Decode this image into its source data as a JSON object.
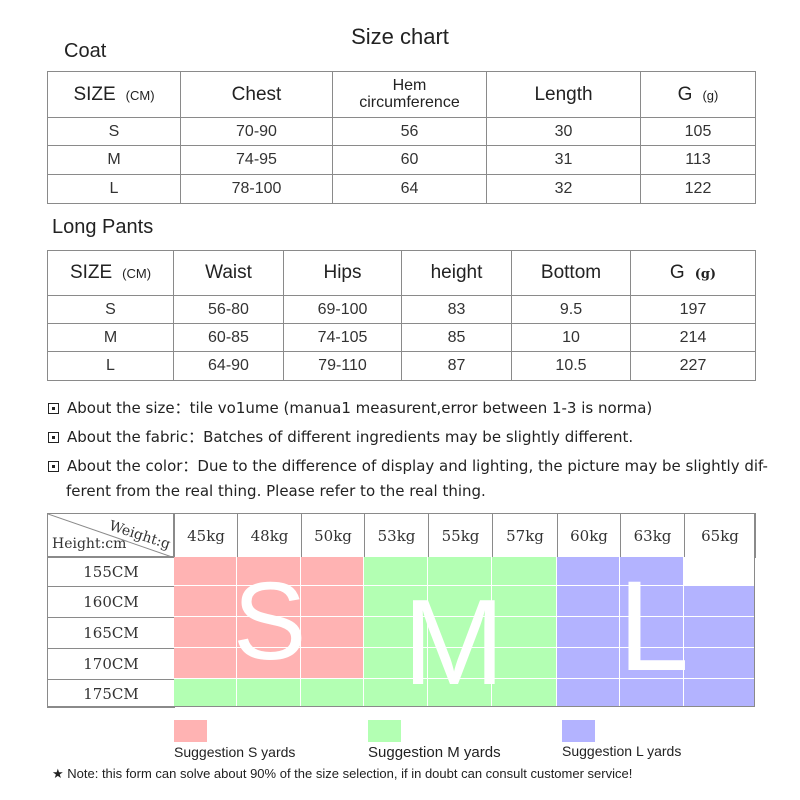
{
  "title": "Size chart",
  "coat": {
    "heading": "Coat",
    "header": {
      "size": "SIZE",
      "unit": "(CM)",
      "chest": "Chest",
      "hem1": "Hem",
      "hem2": "circumference",
      "length": "Length",
      "g": "G",
      "g_unit": "(g)"
    },
    "rows": [
      {
        "size": "S",
        "chest": "70-90",
        "hem": "56",
        "length": "30",
        "g": "105"
      },
      {
        "size": "M",
        "chest": "74-95",
        "hem": "60",
        "length": "31",
        "g": "113"
      },
      {
        "size": "L",
        "chest": "78-100",
        "hem": "64",
        "length": "32",
        "g": "122"
      }
    ]
  },
  "pants": {
    "heading": "Long Pants",
    "header": {
      "size": "SIZE",
      "unit": "(CM)",
      "waist": "Waist",
      "hips": "Hips",
      "height": "height",
      "bottom": "Bottom",
      "g": "G",
      "g_unit": "(g)"
    },
    "rows": [
      {
        "size": "S",
        "waist": "56-80",
        "hips": "69-100",
        "height": "83",
        "bottom": "9.5",
        "g": "197"
      },
      {
        "size": "M",
        "waist": "60-85",
        "hips": "74-105",
        "height": "85",
        "bottom": "10",
        "g": "214"
      },
      {
        "size": "L",
        "waist": "64-90",
        "hips": "79-110",
        "height": "87",
        "bottom": "10.5",
        "g": "227"
      }
    ]
  },
  "notes": {
    "size": "About the size：tile vo1ume (manua1 measurent,error between 1-3 is norma)",
    "fabric": "About the fabric：Batches of different ingredients may be slightly different.",
    "color_line1": "About the color：Due to the difference of display and lighting, the picture may be slightly dif-",
    "color_line2": "ferent from the real thing. Please refer to the real thing."
  },
  "grid": {
    "corner_weight": "Weight:g",
    "corner_height": "Height:cm",
    "weights": [
      "45kg",
      "48kg",
      "50kg",
      "53kg",
      "55kg",
      "57kg",
      "60kg",
      "63kg",
      "65kg"
    ],
    "heights": [
      "155CM",
      "160CM",
      "165CM",
      "170CM",
      "175CM"
    ],
    "cells": [
      [
        "S",
        "S",
        "S",
        "M",
        "M",
        "M",
        "L",
        "L",
        ""
      ],
      [
        "S",
        "S",
        "S",
        "M",
        "M",
        "M",
        "L",
        "L",
        "L"
      ],
      [
        "S",
        "S",
        "S",
        "M",
        "M",
        "M",
        "L",
        "L",
        "L"
      ],
      [
        "S",
        "S",
        "S",
        "M",
        "M",
        "M",
        "L",
        "L",
        "L"
      ],
      [
        "M",
        "M",
        "M",
        "M",
        "M",
        "M",
        "L",
        "L",
        "L"
      ]
    ],
    "letters": {
      "s": "S",
      "m": "M",
      "l": "L"
    }
  },
  "colors": {
    "S": "#ffb3b3",
    "M": "#b3ffb3",
    "L": "#b3b3ff"
  },
  "legend": {
    "s": "Suggestion S yards",
    "m": "Suggestion M yards",
    "l": "Suggestion L yards"
  },
  "footer": "★ Note: this form can solve about 90% of the size selection, if in doubt can consult customer service!"
}
